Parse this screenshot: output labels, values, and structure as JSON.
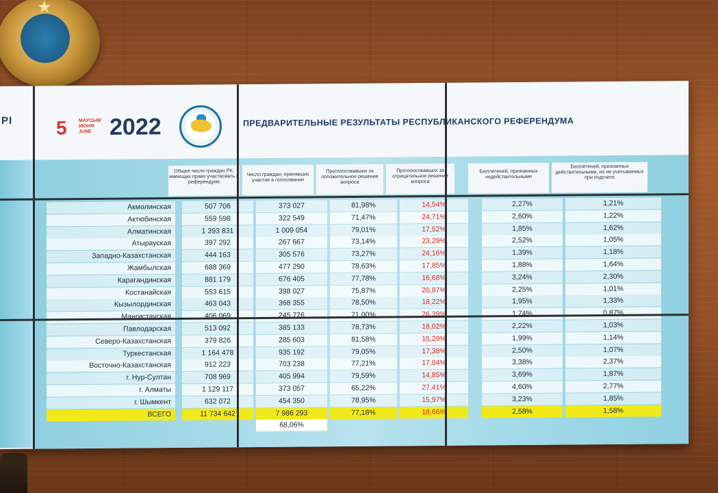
{
  "header": {
    "left_edge_text": "РІ",
    "date_day": "5",
    "date_months": [
      "МАУСЫМ",
      "ИЮНЯ",
      "JUNE"
    ],
    "date_year": "2022",
    "title": "ПРЕДВАРИТЕЛЬНЫЕ РЕЗУЛЬТАТЫ РЕСПУБЛИКАНСКОГО РЕФЕРЕНДУМА"
  },
  "columns": [
    "",
    "Общее число граждан РК, имеющих право участвовать в референдуме",
    "Число граждан, принявших участие в голосовании",
    "Проголосовавших за положительное решение вопроса",
    "Проголосовавших за отрицательное решение вопроса",
    "Бюллетеней, признанных недействительными",
    "Бюллетеней, признанных действительными, но не учитываемых при подсчете"
  ],
  "rows": [
    {
      "region": "Акмолинская",
      "eligible": "507 706",
      "voted": "373 027",
      "yes": "81,98%",
      "no": "14,54%",
      "invalid": "2,27%",
      "not_counted": "1,21%"
    },
    {
      "region": "Актюбинская",
      "eligible": "559 598",
      "voted": "322 549",
      "yes": "71,47%",
      "no": "24,71%",
      "invalid": "2,60%",
      "not_counted": "1,22%"
    },
    {
      "region": "Алматинская",
      "eligible": "1 393 831",
      "voted": "1 009 054",
      "yes": "79,01%",
      "no": "17,52%",
      "invalid": "1,85%",
      "not_counted": "1,62%"
    },
    {
      "region": "Атырауская",
      "eligible": "397 292",
      "voted": "267 667",
      "yes": "73,14%",
      "no": "23,29%",
      "invalid": "2,52%",
      "not_counted": "1,05%"
    },
    {
      "region": "Западно-Казахстанская",
      "eligible": "444 163",
      "voted": "305 576",
      "yes": "73,27%",
      "no": "24,16%",
      "invalid": "1,39%",
      "not_counted": "1,18%"
    },
    {
      "region": "Жамбылская",
      "eligible": "688 369",
      "voted": "477 290",
      "yes": "78,63%",
      "no": "17,85%",
      "invalid": "1,88%",
      "not_counted": "1,64%"
    },
    {
      "region": "Карагандинская",
      "eligible": "881 179",
      "voted": "676 405",
      "yes": "77,78%",
      "no": "16,68%",
      "invalid": "3,24%",
      "not_counted": "2,30%"
    },
    {
      "region": "Костанайская",
      "eligible": "553 615",
      "voted": "398 027",
      "yes": "75,87%",
      "no": "20,87%",
      "invalid": "2,25%",
      "not_counted": "1,01%"
    },
    {
      "region": "Кызылординская",
      "eligible": "463 043",
      "voted": "368 355",
      "yes": "78,50%",
      "no": "18,22%",
      "invalid": "1,95%",
      "not_counted": "1,33%"
    },
    {
      "region": "Мангистауская",
      "eligible": "406 069",
      "voted": "245 776",
      "yes": "71,00%",
      "no": "26,39%",
      "invalid": "1,74%",
      "not_counted": "0,87%"
    },
    {
      "region": "Павлодарская",
      "eligible": "513 092",
      "voted": "385 133",
      "yes": "78,73%",
      "no": "18,02%",
      "invalid": "2,22%",
      "not_counted": "1,03%"
    },
    {
      "region": "Северо-Казахстанская",
      "eligible": "379 826",
      "voted": "285 603",
      "yes": "81,58%",
      "no": "15,29%",
      "invalid": "1,99%",
      "not_counted": "1,14%"
    },
    {
      "region": "Туркестанская",
      "eligible": "1 164 478",
      "voted": "935 192",
      "yes": "79,05%",
      "no": "17,38%",
      "invalid": "2,50%",
      "not_counted": "1,07%"
    },
    {
      "region": "Восточно-Казахстанская",
      "eligible": "912 223",
      "voted": "703 238",
      "yes": "77,21%",
      "no": "17,04%",
      "invalid": "3,38%",
      "not_counted": "2,37%"
    },
    {
      "region": "г. Нур-Султан",
      "eligible": "708 969",
      "voted": "405 994",
      "yes": "79,59%",
      "no": "14,85%",
      "invalid": "3,69%",
      "not_counted": "1,87%"
    },
    {
      "region": "г. Алматы",
      "eligible": "1 129 117",
      "voted": "373 057",
      "yes": "65,22%",
      "no": "27,41%",
      "invalid": "4,60%",
      "not_counted": "2,77%"
    },
    {
      "region": "г. Шымкент",
      "eligible": "632 072",
      "voted": "454 350",
      "yes": "78,95%",
      "no": "15,97%",
      "invalid": "3,23%",
      "not_counted": "1,85%"
    }
  ],
  "total": {
    "region": "ВСЕГО",
    "eligible": "11 734 642",
    "voted": "7 986 293",
    "yes": "77,18%",
    "no": "18,66%",
    "invalid": "2,58%",
    "not_counted": "1,58%"
  },
  "turnout": "68,06%",
  "colors": {
    "negative": "#d32a2a",
    "total_highlight": "#f2ea18",
    "title": "#1f3a66",
    "date_accent": "#d8332c"
  }
}
